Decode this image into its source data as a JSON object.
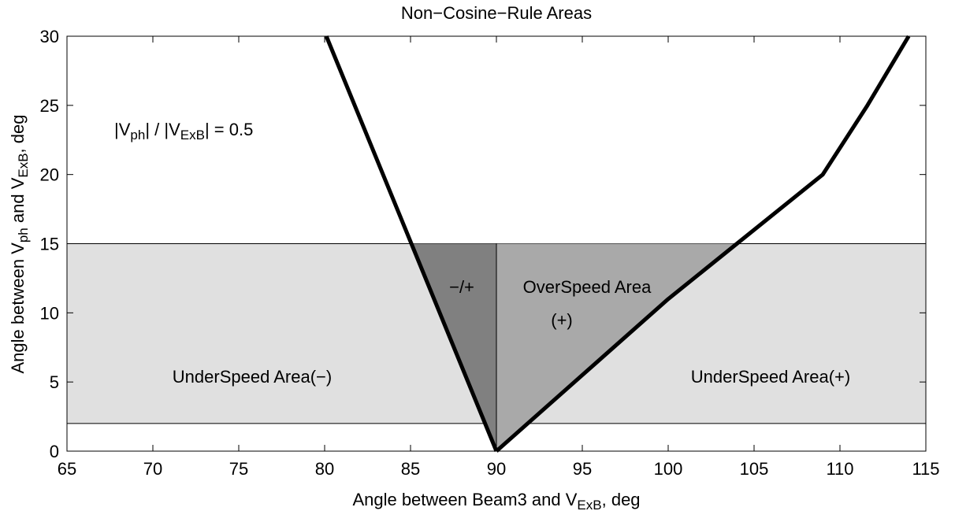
{
  "chart_data": {
    "type": "line",
    "title": "Non−Cosine−Rule Areas",
    "xlabel_parts": [
      "Angle between Beam3 and V",
      "ExB",
      ", deg"
    ],
    "ylabel_parts": [
      "Angle between V",
      "ph",
      " and V",
      "ExB",
      ", deg"
    ],
    "xlim": [
      65,
      115
    ],
    "xticks": [
      65,
      70,
      75,
      80,
      85,
      90,
      95,
      100,
      105,
      110,
      115
    ],
    "ylim": [
      0,
      30
    ],
    "yticks": [
      0,
      5,
      10,
      15,
      20,
      25,
      30
    ],
    "shaded_band": [
      2,
      15
    ],
    "band_color": "#e0e0e0",
    "divider_x": 90,
    "left_region_color": "#808080",
    "right_region_color": "#a9a9a9",
    "series": [
      {
        "color": "#000000",
        "x": [
          80.1,
          90
        ],
        "values": [
          30,
          0
        ]
      },
      {
        "color": "#000000",
        "x": [
          90,
          95,
          100,
          104,
          109,
          111.6,
          114
        ],
        "values": [
          0,
          5.5,
          11,
          15,
          20,
          25,
          30
        ]
      }
    ],
    "annotations": [
      {
        "parts": [
          "|V",
          "ph",
          "| / |V",
          "ExB",
          "| = 0.5"
        ]
      },
      {
        "parts": [
          "−/+"
        ]
      },
      {
        "parts": [
          "OverSpeed Area"
        ]
      },
      {
        "parts": [
          "(+)"
        ]
      },
      {
        "parts": [
          "UnderSpeed Area(−)"
        ]
      },
      {
        "parts": [
          "UnderSpeed Area(+)"
        ]
      }
    ]
  }
}
